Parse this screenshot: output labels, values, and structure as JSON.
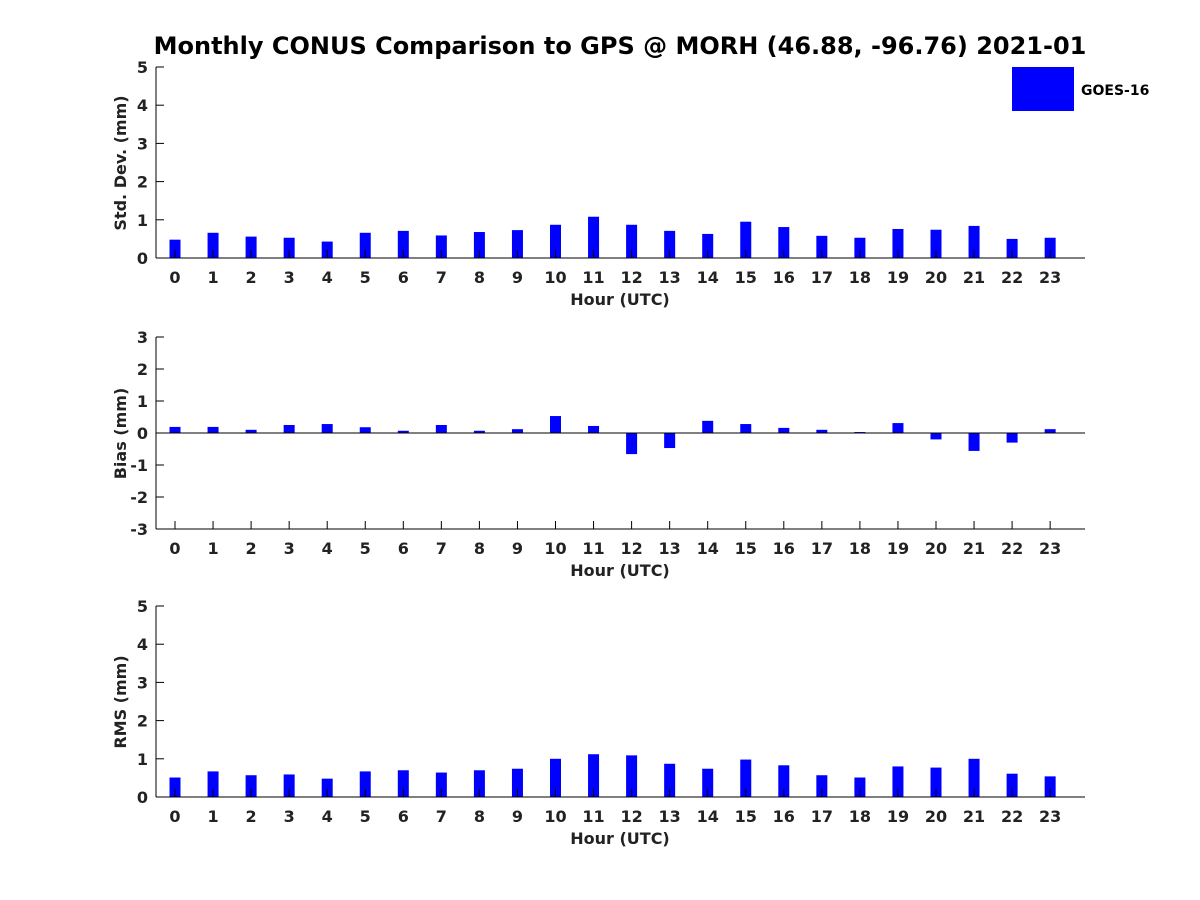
{
  "title": "Monthly CONUS Comparison to GPS @ MORH (46.88, -96.76) 2021-01",
  "legend": {
    "label": "GOES-16",
    "placement": "top-right"
  },
  "colors": {
    "bar": "#0000ff",
    "axis": "#000000",
    "text": "#222222"
  },
  "chart_data": [
    {
      "type": "bar",
      "categories": [
        "0",
        "1",
        "2",
        "3",
        "4",
        "5",
        "6",
        "7",
        "8",
        "9",
        "10",
        "11",
        "12",
        "13",
        "14",
        "15",
        "16",
        "17",
        "18",
        "19",
        "20",
        "21",
        "22",
        "23"
      ],
      "series": [
        {
          "name": "GOES-16",
          "values": [
            0.48,
            0.66,
            0.56,
            0.53,
            0.43,
            0.66,
            0.71,
            0.59,
            0.68,
            0.73,
            0.87,
            1.08,
            0.87,
            0.71,
            0.63,
            0.95,
            0.81,
            0.58,
            0.53,
            0.76,
            0.74,
            0.84,
            0.5,
            0.53
          ]
        }
      ],
      "xlabel": "Hour (UTC)",
      "ylabel": "Std. Dev. (mm)",
      "ylim": [
        0,
        5
      ],
      "yticks": [
        "0",
        "1",
        "2",
        "3",
        "4",
        "5"
      ],
      "grid": false
    },
    {
      "type": "bar",
      "categories": [
        "0",
        "1",
        "2",
        "3",
        "4",
        "5",
        "6",
        "7",
        "8",
        "9",
        "10",
        "11",
        "12",
        "13",
        "14",
        "15",
        "16",
        "17",
        "18",
        "19",
        "20",
        "21",
        "22",
        "23"
      ],
      "series": [
        {
          "name": "GOES-16",
          "values": [
            0.19,
            0.19,
            0.1,
            0.25,
            0.28,
            0.18,
            0.07,
            0.25,
            0.07,
            0.12,
            0.53,
            0.22,
            -0.66,
            -0.47,
            0.38,
            0.28,
            0.16,
            0.1,
            0.03,
            0.31,
            -0.2,
            -0.56,
            -0.3,
            0.12
          ]
        }
      ],
      "xlabel": "Hour (UTC)",
      "ylabel": "Bias (mm)",
      "ylim": [
        -3,
        3
      ],
      "yticks": [
        "-3",
        "-2",
        "-1",
        "0",
        "1",
        "2",
        "3"
      ],
      "grid": false
    },
    {
      "type": "bar",
      "categories": [
        "0",
        "1",
        "2",
        "3",
        "4",
        "5",
        "6",
        "7",
        "8",
        "9",
        "10",
        "11",
        "12",
        "13",
        "14",
        "15",
        "16",
        "17",
        "18",
        "19",
        "20",
        "21",
        "22",
        "23"
      ],
      "series": [
        {
          "name": "GOES-16",
          "values": [
            0.51,
            0.67,
            0.57,
            0.59,
            0.48,
            0.67,
            0.7,
            0.64,
            0.7,
            0.74,
            1.0,
            1.12,
            1.09,
            0.87,
            0.74,
            0.98,
            0.83,
            0.57,
            0.51,
            0.8,
            0.77,
            1.0,
            0.61,
            0.54
          ]
        }
      ],
      "xlabel": "Hour (UTC)",
      "ylabel": "RMS (mm)",
      "ylim": [
        0,
        5
      ],
      "yticks": [
        "0",
        "1",
        "2",
        "3",
        "4",
        "5"
      ],
      "grid": false
    }
  ]
}
